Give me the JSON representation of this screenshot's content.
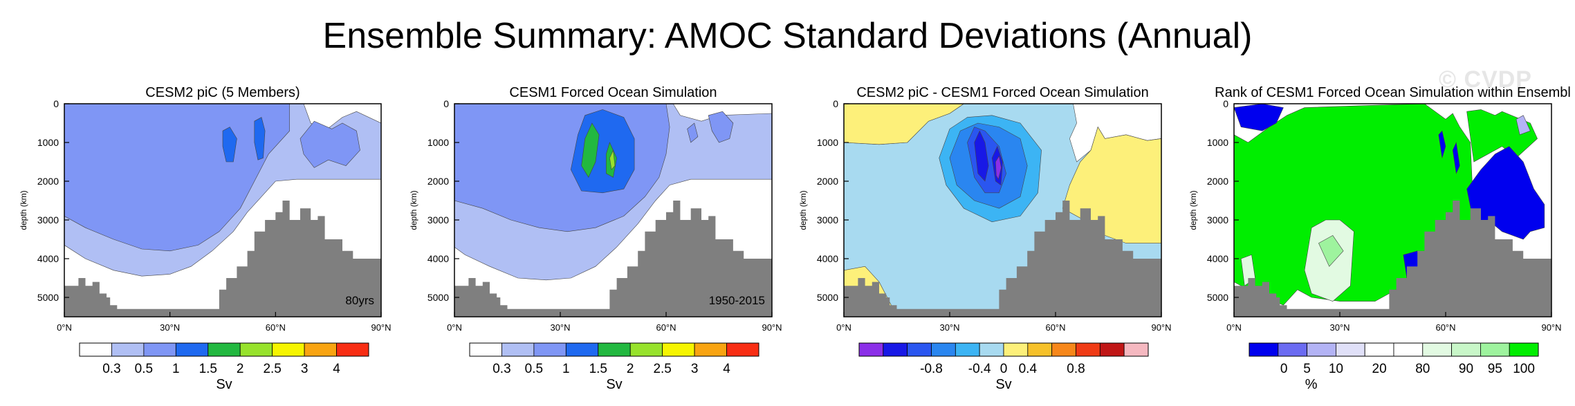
{
  "title": "Ensemble Summary: AMOC Standard Deviations (Annual)",
  "watermark": "© CVDP",
  "colors": {
    "ocean_floor": "#7f7f7f"
  },
  "chart_data": [
    {
      "type": "heatmap",
      "title": "CESM2 piC (5 Members)",
      "xlabel": "",
      "ylabel": "depth (km)",
      "xticks": [
        "0°N",
        "30°N",
        "60°N",
        "90°N"
      ],
      "yticks": [
        "0",
        "1000",
        "2000",
        "3000",
        "4000",
        "5000"
      ],
      "xlim": [
        0,
        90
      ],
      "ylim": [
        5500,
        0
      ],
      "inset_label": "80yrs",
      "colorbar": {
        "unit": "Sv",
        "colors": [
          "#ffffff",
          "#b0bff4",
          "#7f96f5",
          "#1f69f0",
          "#22b840",
          "#97e22c",
          "#f6f500",
          "#f9a411",
          "#f82d13"
        ],
        "labels": [
          "0.3",
          "0.5",
          "1",
          "1.5",
          "2",
          "2.5",
          "3",
          "4"
        ]
      }
    },
    {
      "type": "heatmap",
      "title": "CESM1 Forced Ocean Simulation",
      "xlabel": "",
      "ylabel": "depth (km)",
      "xticks": [
        "0°N",
        "30°N",
        "60°N",
        "90°N"
      ],
      "yticks": [
        "0",
        "1000",
        "2000",
        "3000",
        "4000",
        "5000"
      ],
      "xlim": [
        0,
        90
      ],
      "ylim": [
        5500,
        0
      ],
      "inset_label": "1950-2015",
      "colorbar": {
        "unit": "Sv",
        "colors": [
          "#ffffff",
          "#b0bff4",
          "#7f96f5",
          "#1f69f0",
          "#22b840",
          "#97e22c",
          "#f6f500",
          "#f9a411",
          "#f82d13"
        ],
        "labels": [
          "0.3",
          "0.5",
          "1",
          "1.5",
          "2",
          "2.5",
          "3",
          "4"
        ]
      }
    },
    {
      "type": "heatmap",
      "title": "CESM2 piC - CESM1 Forced Ocean Simulation",
      "xlabel": "",
      "ylabel": "depth (km)",
      "xticks": [
        "0°N",
        "30°N",
        "60°N",
        "90°N"
      ],
      "yticks": [
        "0",
        "1000",
        "2000",
        "3000",
        "4000",
        "5000"
      ],
      "xlim": [
        0,
        90
      ],
      "ylim": [
        5500,
        0
      ],
      "inset_label": "",
      "colorbar": {
        "unit": "Sv",
        "colors": [
          "#8b2fe8",
          "#1818e6",
          "#2a56f0",
          "#2a86f0",
          "#3cb4f4",
          "#a8daf0",
          "#fdf07a",
          "#f6c12a",
          "#f7871a",
          "#f03b15",
          "#c01616",
          "#f5b8c0"
        ],
        "labels": [
          "-0.8",
          "-0.4",
          "0",
          "0.4",
          "0.8"
        ]
      }
    },
    {
      "type": "heatmap",
      "title": "Rank of CESM1 Forced Ocean Simulation within Ensembl",
      "xlabel": "",
      "ylabel": "depth (km)",
      "xticks": [
        "0°N",
        "30°N",
        "60°N",
        "90°N"
      ],
      "yticks": [
        "0",
        "1000",
        "2000",
        "3000",
        "4000",
        "5000"
      ],
      "xlim": [
        0,
        90
      ],
      "ylim": [
        5500,
        0
      ],
      "inset_label": "",
      "colorbar": {
        "unit": "%",
        "colors": [
          "#0000ee",
          "#6b6bf2",
          "#b3b3f5",
          "#e0e0f8",
          "#ffffff",
          "#ffffff",
          "#e2fae2",
          "#c8f7c8",
          "#9ef39e",
          "#00ee00"
        ],
        "labels": [
          "0",
          "5",
          "10",
          "20",
          "80",
          "90",
          "95",
          "100"
        ]
      }
    }
  ]
}
